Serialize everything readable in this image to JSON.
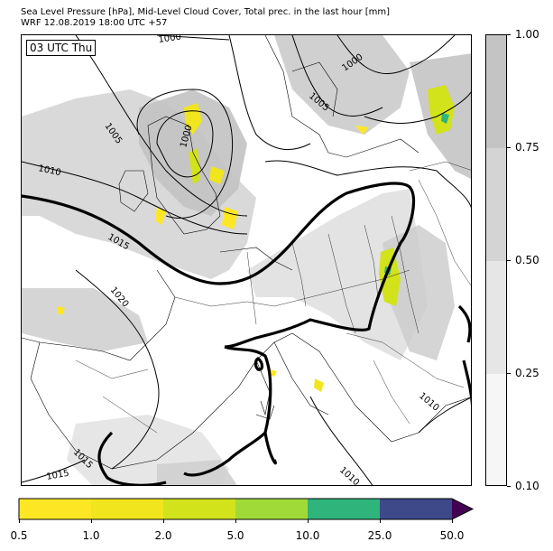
{
  "title": {
    "line1": "Sea Level Pressure [hPa], Mid-Level Cloud Cover, Total prec. in the last hour [mm]",
    "line2": "WRF 12.08.2019 18:00 UTC +57"
  },
  "time_label": "03 UTC Thu",
  "isobar_labels": [
    "1000",
    "1000",
    "1000",
    "1005",
    "1005",
    "1010",
    "1010",
    "1015",
    "1015",
    "1020",
    "1010",
    "1005",
    "1010",
    "1015"
  ],
  "cloud_colorbar": {
    "ticks": [
      "0.10",
      "0.25",
      "0.50",
      "0.75",
      "1.00"
    ],
    "colors": [
      "#f6f6f6",
      "#e6e6e6",
      "#d4d4d4",
      "#c4c4c4"
    ]
  },
  "precip_colorbar": {
    "ticks": [
      "0.5",
      "1.0",
      "2.0",
      "5.0",
      "10.0",
      "25.0",
      "50.0"
    ],
    "colors": [
      "#fde725",
      "#f1e51d",
      "#d2e21b",
      "#a0da39",
      "#2fb47c",
      "#3e4989",
      "#440154"
    ]
  }
}
